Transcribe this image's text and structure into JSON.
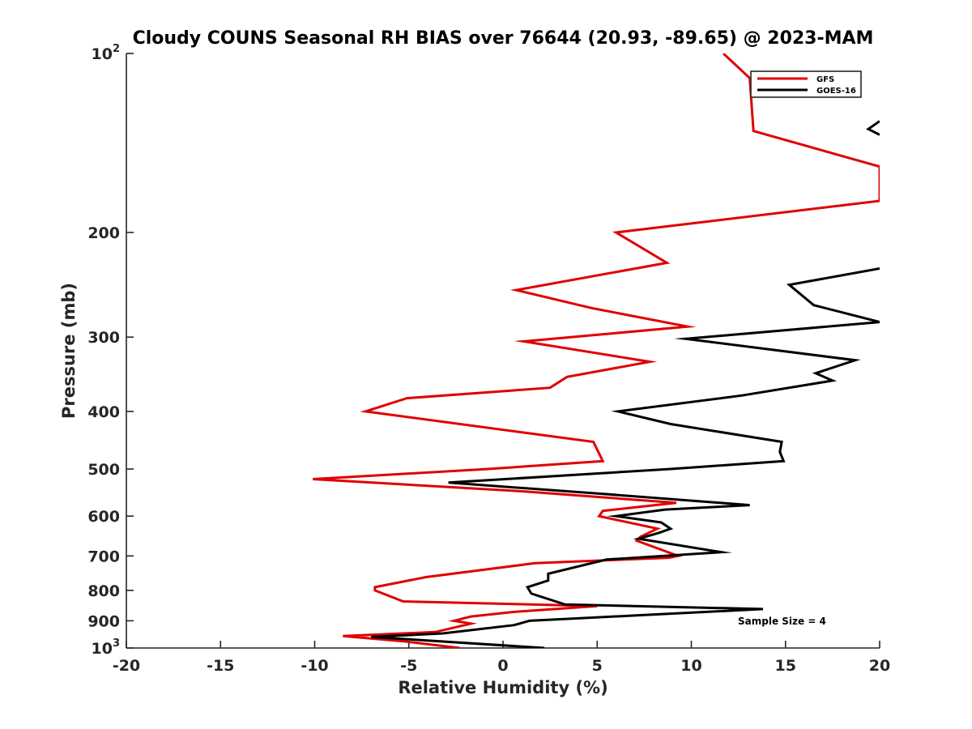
{
  "chart_data": {
    "type": "line",
    "title": "Cloudy COUNS Seasonal RH BIAS over 76644 (20.93, -89.65) @ 2023-MAM",
    "xlabel": "Relative Humidity (%)",
    "ylabel": "Pressure (mb)",
    "xlim": [
      -20,
      20
    ],
    "ylim": [
      100,
      1000
    ],
    "yscale": "log",
    "y_reversed": true,
    "grid": false,
    "legend_position": "top-right",
    "xticks": [
      -20,
      -15,
      -10,
      -5,
      0,
      5,
      10,
      15,
      20
    ],
    "xtick_labels": [
      "-20",
      "-15",
      "-10",
      "-5",
      "0",
      "5",
      "10",
      "15",
      "20"
    ],
    "yticks": [
      {
        "value": 100,
        "base": "10",
        "sup": "2"
      },
      {
        "value": 200,
        "base": "200",
        "sup": ""
      },
      {
        "value": 300,
        "base": "300",
        "sup": ""
      },
      {
        "value": 400,
        "base": "400",
        "sup": ""
      },
      {
        "value": 500,
        "base": "500",
        "sup": ""
      },
      {
        "value": 600,
        "base": "600",
        "sup": ""
      },
      {
        "value": 700,
        "base": "700",
        "sup": ""
      },
      {
        "value": 800,
        "base": "800",
        "sup": ""
      },
      {
        "value": 900,
        "base": "900",
        "sup": ""
      },
      {
        "value": 1000,
        "base": "10",
        "sup": "3"
      }
    ],
    "annotation": "Sample Size = 4",
    "series": [
      {
        "name": "GFS",
        "color": "#e00000",
        "points": [
          {
            "x": 11.7,
            "p": 100
          },
          {
            "x": 13.1,
            "p": 110
          },
          {
            "x": 13.3,
            "p": 135
          },
          {
            "x": 20.0,
            "p": 155
          },
          {
            "x": 20.0,
            "p": 177
          },
          {
            "x": 6.0,
            "p": 200
          },
          {
            "x": 8.7,
            "p": 225
          },
          {
            "x": 0.7,
            "p": 250
          },
          {
            "x": 4.7,
            "p": 268
          },
          {
            "x": 9.8,
            "p": 288
          },
          {
            "x": 1.1,
            "p": 305
          },
          {
            "x": 7.8,
            "p": 330
          },
          {
            "x": 3.4,
            "p": 350
          },
          {
            "x": 2.5,
            "p": 365
          },
          {
            "x": -5.1,
            "p": 380
          },
          {
            "x": -7.3,
            "p": 400
          },
          {
            "x": 4.8,
            "p": 450
          },
          {
            "x": 5.3,
            "p": 485
          },
          {
            "x": -0.8,
            "p": 500
          },
          {
            "x": -10.1,
            "p": 520
          },
          {
            "x": 1.0,
            "p": 545
          },
          {
            "x": 9.2,
            "p": 570
          },
          {
            "x": 5.3,
            "p": 588
          },
          {
            "x": 5.1,
            "p": 600
          },
          {
            "x": 8.2,
            "p": 630
          },
          {
            "x": 7.3,
            "p": 650
          },
          {
            "x": 7.1,
            "p": 660
          },
          {
            "x": 9.3,
            "p": 700
          },
          {
            "x": 8.8,
            "p": 705
          },
          {
            "x": 1.7,
            "p": 720
          },
          {
            "x": -4.1,
            "p": 760
          },
          {
            "x": -6.8,
            "p": 790
          },
          {
            "x": -6.8,
            "p": 800
          },
          {
            "x": -5.3,
            "p": 835
          },
          {
            "x": 5.0,
            "p": 850
          },
          {
            "x": 0.5,
            "p": 870
          },
          {
            "x": -1.7,
            "p": 885
          },
          {
            "x": -2.6,
            "p": 900
          },
          {
            "x": -1.7,
            "p": 910
          },
          {
            "x": -3.6,
            "p": 940
          },
          {
            "x": -8.5,
            "p": 955
          },
          {
            "x": -5.2,
            "p": 975
          },
          {
            "x": -2.3,
            "p": 1000
          }
        ]
      },
      {
        "name": "GOES-16",
        "color": "#000000",
        "segments": [
          [
            {
              "x": 20.0,
              "p": 130
            },
            {
              "x": 19.4,
              "p": 134
            },
            {
              "x": 20.0,
              "p": 137
            }
          ],
          [
            {
              "x": 20.0,
              "p": 230
            },
            {
              "x": 15.2,
              "p": 245
            },
            {
              "x": 16.5,
              "p": 265
            },
            {
              "x": 20.0,
              "p": 283
            },
            {
              "x": 9.7,
              "p": 302
            },
            {
              "x": 18.7,
              "p": 328
            },
            {
              "x": 16.6,
              "p": 345
            },
            {
              "x": 17.5,
              "p": 355
            },
            {
              "x": 12.7,
              "p": 376
            },
            {
              "x": 6.1,
              "p": 400
            },
            {
              "x": 8.9,
              "p": 420
            },
            {
              "x": 14.8,
              "p": 450
            },
            {
              "x": 14.7,
              "p": 468
            },
            {
              "x": 14.9,
              "p": 485
            },
            {
              "x": 8.9,
              "p": 500
            },
            {
              "x": -2.9,
              "p": 527
            },
            {
              "x": 5.1,
              "p": 550
            },
            {
              "x": 13.1,
              "p": 575
            },
            {
              "x": 8.6,
              "p": 585
            },
            {
              "x": 6.0,
              "p": 600
            },
            {
              "x": 8.4,
              "p": 615
            },
            {
              "x": 8.9,
              "p": 630
            },
            {
              "x": 8.3,
              "p": 640
            },
            {
              "x": 7.2,
              "p": 655
            },
            {
              "x": 11.6,
              "p": 690
            },
            {
              "x": 5.5,
              "p": 710
            },
            {
              "x": 2.4,
              "p": 750
            },
            {
              "x": 2.4,
              "p": 770
            },
            {
              "x": 1.3,
              "p": 790
            },
            {
              "x": 1.5,
              "p": 810
            },
            {
              "x": 3.3,
              "p": 845
            },
            {
              "x": 13.8,
              "p": 860
            },
            {
              "x": 7.5,
              "p": 880
            },
            {
              "x": 1.4,
              "p": 900
            },
            {
              "x": 0.6,
              "p": 915
            },
            {
              "x": -3.2,
              "p": 945
            },
            {
              "x": -7.0,
              "p": 958
            },
            {
              "x": 2.2,
              "p": 1000
            }
          ]
        ]
      }
    ]
  }
}
